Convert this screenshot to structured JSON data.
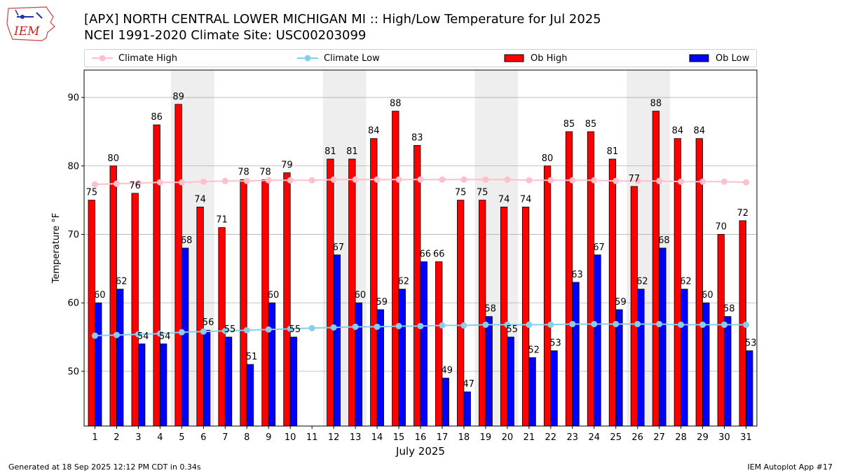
{
  "header": {
    "title_line1": "[APX] NORTH CENTRAL LOWER MICHIGAN  MI :: High/Low Temperature for Jul 2025",
    "title_line2": "NCEI 1991-2020 Climate Site: USC00203099",
    "logo_text": "IEM"
  },
  "legend": {
    "items": [
      {
        "label": "Climate High",
        "color": "#ffc0cb",
        "kind": "line"
      },
      {
        "label": "Climate Low",
        "color": "#87ceeb",
        "kind": "line"
      },
      {
        "label": "Ob High",
        "color": "#ff0000",
        "kind": "bar"
      },
      {
        "label": "Ob Low",
        "color": "#0000ff",
        "kind": "bar"
      }
    ]
  },
  "footer": {
    "left": "Generated at 18 Sep 2025 12:12 PM CDT in 0.34s",
    "right": "IEM Autoplot App #17"
  },
  "chart_data": {
    "type": "bar",
    "xlabel": "July 2025",
    "ylabel": "Temperature °F",
    "ylim": [
      42,
      94
    ],
    "yticks": [
      50,
      60,
      70,
      80,
      90
    ],
    "grid": true,
    "legend_position": "top",
    "weekend_shading": [
      [
        5,
        6
      ],
      [
        12,
        13
      ],
      [
        19,
        20
      ],
      [
        26,
        27
      ]
    ],
    "categories": [
      "1",
      "2",
      "3",
      "4",
      "5",
      "6",
      "7",
      "8",
      "9",
      "10",
      "11",
      "12",
      "13",
      "14",
      "15",
      "16",
      "17",
      "18",
      "19",
      "20",
      "21",
      "22",
      "23",
      "24",
      "25",
      "26",
      "27",
      "28",
      "29",
      "30",
      "31"
    ],
    "series": [
      {
        "name": "Ob High",
        "color": "#ff0000",
        "values": [
          75,
          80,
          76,
          86,
          89,
          74,
          71,
          78,
          78,
          79,
          null,
          81,
          81,
          84,
          88,
          83,
          66,
          75,
          75,
          74,
          74,
          80,
          85,
          85,
          81,
          77,
          88,
          84,
          84,
          70,
          72
        ]
      },
      {
        "name": "Ob Low",
        "color": "#0000ff",
        "values": [
          60,
          62,
          54,
          54,
          68,
          56,
          55,
          51,
          60,
          55,
          null,
          67,
          60,
          59,
          62,
          66,
          49,
          47,
          58,
          55,
          52,
          53,
          63,
          67,
          59,
          62,
          68,
          62,
          60,
          58,
          53
        ]
      },
      {
        "name": "Climate High",
        "color": "#ffc0cb",
        "values": [
          77.3,
          77.4,
          77.5,
          77.6,
          77.6,
          77.7,
          77.8,
          77.8,
          77.9,
          77.9,
          77.9,
          78.0,
          78.0,
          78.0,
          78.0,
          78.0,
          78.0,
          78.0,
          78.0,
          78.0,
          77.9,
          77.9,
          77.9,
          77.9,
          77.8,
          77.8,
          77.8,
          77.7,
          77.7,
          77.7,
          77.6
        ]
      },
      {
        "name": "Climate Low",
        "color": "#87ceeb",
        "values": [
          55.2,
          55.3,
          55.4,
          55.5,
          55.7,
          55.8,
          55.9,
          56.0,
          56.1,
          56.2,
          56.3,
          56.4,
          56.5,
          56.5,
          56.6,
          56.6,
          56.7,
          56.7,
          56.8,
          56.8,
          56.8,
          56.8,
          56.9,
          56.9,
          56.9,
          56.9,
          56.9,
          56.8,
          56.8,
          56.8,
          56.8
        ]
      }
    ]
  }
}
